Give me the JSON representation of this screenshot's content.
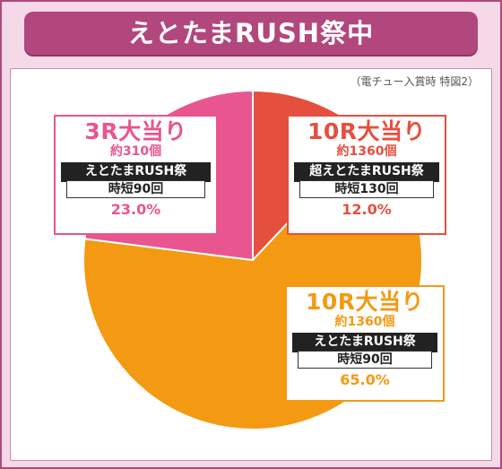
{
  "header": {
    "title": "えとたまRUSH祭中"
  },
  "note": "（電チュー入賞時 特図2）",
  "chart_data": {
    "type": "pie",
    "slices": [
      {
        "label": "10R大当り",
        "value": 12.0,
        "color": "#e54f3e"
      },
      {
        "label": "10R大当り",
        "value": 65.0,
        "color": "#f39a12"
      },
      {
        "label": "3R大当り",
        "value": 23.0,
        "color": "#e8558f"
      }
    ]
  },
  "boxes": {
    "r3": {
      "head": "3R大当り",
      "sub": "約310個",
      "mode": "えとたまRUSH祭",
      "jitan": "時短90回",
      "pct": "23.0%"
    },
    "r10a": {
      "head": "10R大当り",
      "sub": "約1360個",
      "mode": "超えとたまRUSH祭",
      "jitan": "時短130回",
      "pct": "12.0%"
    },
    "r10b": {
      "head": "10R大当り",
      "sub": "約1360個",
      "mode": "えとたまRUSH祭",
      "jitan": "時短90回",
      "pct": "65.0%"
    }
  }
}
